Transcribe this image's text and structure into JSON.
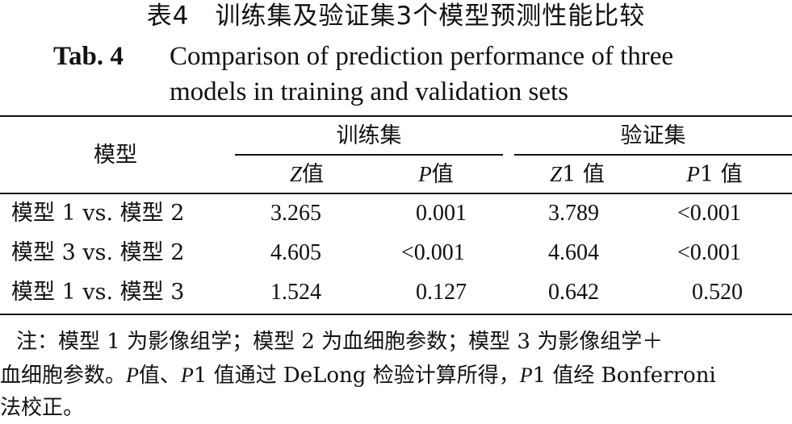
{
  "title": {
    "cn": "表4　训练集及验证集3个模型预测性能比较",
    "en_label": "Tab. 4",
    "en_line1": "Comparison of prediction performance of three",
    "en_line2": "models in training and validation sets"
  },
  "table": {
    "row_header": "模型",
    "groups": [
      "训练集",
      "验证集"
    ],
    "subheaders": [
      {
        "italic": "Z",
        "suffix": "值"
      },
      {
        "italic": "P",
        "suffix": "值"
      },
      {
        "italic": "Z",
        "suffix": "1 值"
      },
      {
        "italic": "P",
        "suffix": "1 值"
      }
    ],
    "rows": [
      {
        "model": "模型 1 vs. 模型 2",
        "values": [
          "3.265",
          "0.001",
          "3.789",
          "<0.001"
        ]
      },
      {
        "model": "模型 3 vs. 模型 2",
        "values": [
          "4.605",
          "<0.001",
          "4.604",
          "<0.001"
        ]
      },
      {
        "model": "模型 1 vs. 模型 3",
        "values": [
          "1.524",
          "0.127",
          "0.642",
          "0.520"
        ]
      }
    ]
  },
  "note": {
    "line1": "注：模型 1 为影像组学；模型 2 为血细胞参数；模型 3 为影像组学＋",
    "line2a": "血细胞参数。",
    "line2b_italic": "P",
    "line2c": "值、",
    "line2d_italic": "P",
    "line2e": "1 值通过 DeLong 检验计算所得，",
    "line2f_italic": "P",
    "line2g": "1 值经 Bonferroni",
    "line3": "法校正。"
  }
}
